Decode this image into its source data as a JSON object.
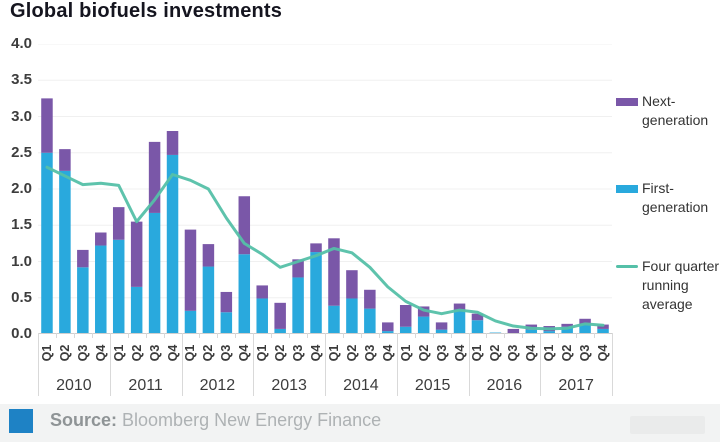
{
  "title": "Global biofuels investments",
  "colors": {
    "first_gen": "#29a9dd",
    "next_gen": "#7a57a8",
    "avg_line": "#55c0a8",
    "source_square": "#1e82c5",
    "axis_line": "#cfcfcf",
    "gridline": "#f0f0f0"
  },
  "legend": [
    {
      "label": "Next-generation",
      "type": "bar",
      "color_key": "next_gen"
    },
    {
      "label": "First-generation",
      "type": "bar",
      "color_key": "first_gen"
    },
    {
      "label": "Four quarter running average",
      "type": "line",
      "color_key": "avg_line"
    }
  ],
  "source": {
    "label": "Source:",
    "text": " Bloomberg New Energy Finance"
  },
  "chart_data": {
    "type": "bar",
    "subtype": "stacked-bars-with-line",
    "title": "Global biofuels investments",
    "xlabel": "",
    "ylabel": "",
    "ylim": [
      0,
      4.0
    ],
    "yticks": [
      "4.0",
      "3.5",
      "3.0",
      "2.5",
      "2.0",
      "1.5",
      "1.0",
      "0.5",
      "0.0"
    ],
    "grid": "faint-horizontal",
    "legend_position": "right",
    "years": [
      "2010",
      "2011",
      "2012",
      "2013",
      "2014",
      "2015",
      "2016",
      "2017"
    ],
    "quarter_labels": [
      "Q1",
      "Q2",
      "Q3",
      "Q4"
    ],
    "series": [
      {
        "name": "First-generation",
        "type": "bar-stack",
        "color": "#29a9dd",
        "values": [
          2.5,
          2.25,
          0.92,
          1.22,
          1.3,
          0.65,
          1.67,
          2.47,
          0.32,
          0.93,
          0.3,
          1.1,
          0.49,
          0.07,
          0.78,
          1.13,
          0.39,
          0.49,
          0.35,
          0.04,
          0.1,
          0.24,
          0.06,
          0.33,
          0.19,
          0.02,
          0.01,
          0.06,
          0.04,
          0.1,
          0.14,
          0.07
        ]
      },
      {
        "name": "Next-generation",
        "type": "bar-stack",
        "color": "#7a57a8",
        "values": [
          0.75,
          0.3,
          0.24,
          0.18,
          0.45,
          0.9,
          0.98,
          0.33,
          1.12,
          0.31,
          0.28,
          0.8,
          0.18,
          0.36,
          0.25,
          0.12,
          0.93,
          0.39,
          0.26,
          0.12,
          0.3,
          0.14,
          0.1,
          0.09,
          0.09,
          0.0,
          0.06,
          0.07,
          0.07,
          0.04,
          0.07,
          0.06
        ]
      },
      {
        "name": "Four quarter running average",
        "type": "line",
        "color": "#55c0a8",
        "values": [
          2.3,
          2.18,
          2.06,
          2.08,
          2.05,
          1.55,
          1.85,
          2.2,
          2.12,
          2.0,
          1.6,
          1.25,
          1.1,
          0.92,
          1.0,
          1.08,
          1.18,
          1.12,
          0.92,
          0.65,
          0.45,
          0.33,
          0.28,
          0.33,
          0.3,
          0.18,
          0.11,
          0.08,
          0.07,
          0.08,
          0.14,
          0.12
        ]
      }
    ]
  }
}
